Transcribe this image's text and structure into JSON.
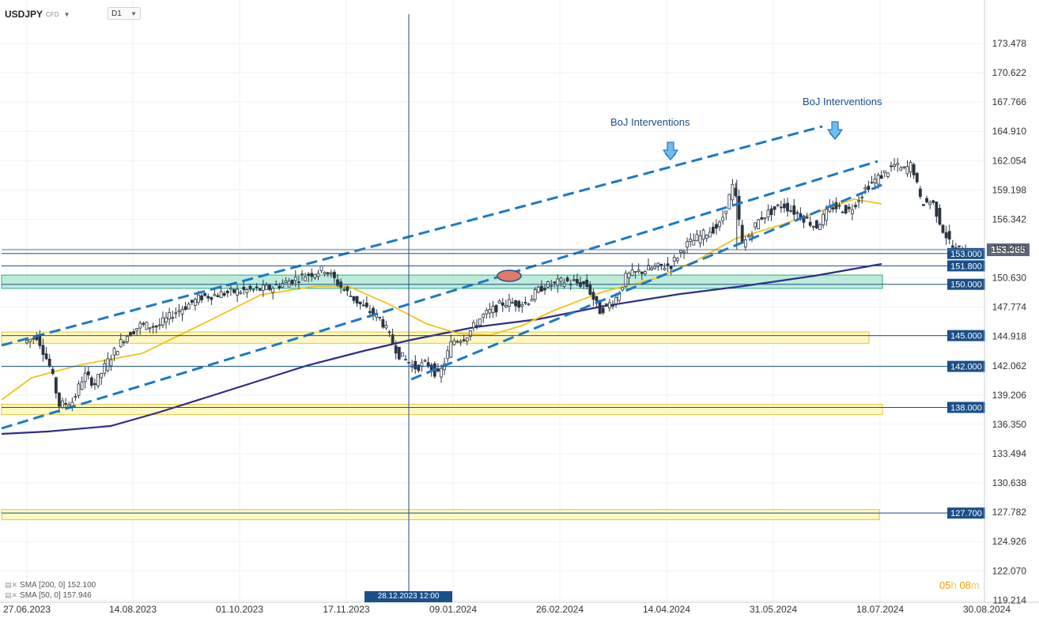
{
  "header": {
    "symbol": "USDJPY",
    "instrument_type": "CFD",
    "timeframe": "D1"
  },
  "indicators": [
    {
      "label": "SMA [200, 0] 152.100",
      "color": "#2e2d8a"
    },
    {
      "label": "SMA [50, 0] 157.946",
      "color": "#f0c419"
    }
  ],
  "countdown": {
    "h": "05",
    "h_unit": "h",
    "m": "08",
    "m_unit": "m"
  },
  "crosshair": {
    "label": "28.12.2023 12:00"
  },
  "chart_data": {
    "type": "candlestick",
    "y_ticks": [
      "173.478",
      "170.622",
      "167.766",
      "164.910",
      "162.054",
      "159.198",
      "156.342",
      "153.486",
      "150.630",
      "147.774",
      "144.918",
      "142.062",
      "139.206",
      "136.350",
      "133.494",
      "130.638",
      "127.782",
      "124.926",
      "122.070",
      "119.214"
    ],
    "x_ticks": [
      "27.06.2023",
      "14.08.2023",
      "01.10.2023",
      "17.11.2023",
      "09.01.2024",
      "26.02.2024",
      "14.04.2024",
      "31.05.2024",
      "18.07.2024",
      "30.08.2024"
    ],
    "ylim": [
      119.214,
      173.478
    ],
    "current_price": "153.365",
    "levels": [
      {
        "label": "153.000",
        "value": 153.0
      },
      {
        "label": "151.800",
        "value": 151.8
      },
      {
        "label": "150.000",
        "value": 150.0
      },
      {
        "label": "145.000",
        "value": 145.0
      },
      {
        "label": "142.000",
        "value": 142.0
      },
      {
        "label": "138.000",
        "value": 138.0
      },
      {
        "label": "127.700",
        "value": 127.7
      }
    ],
    "annotations": [
      "BoJ Interventions",
      "BoJ Interventions"
    ],
    "colors": {
      "up": "#2a3340",
      "down": "#2a3340",
      "sma200": "#2e2d8a",
      "sma50": "#f0c419",
      "channel": "#1a7ac4",
      "level_label": "#1b4f8a",
      "zone_yellow": "#fff6b0",
      "zone_green": "#a8e6cf"
    }
  }
}
